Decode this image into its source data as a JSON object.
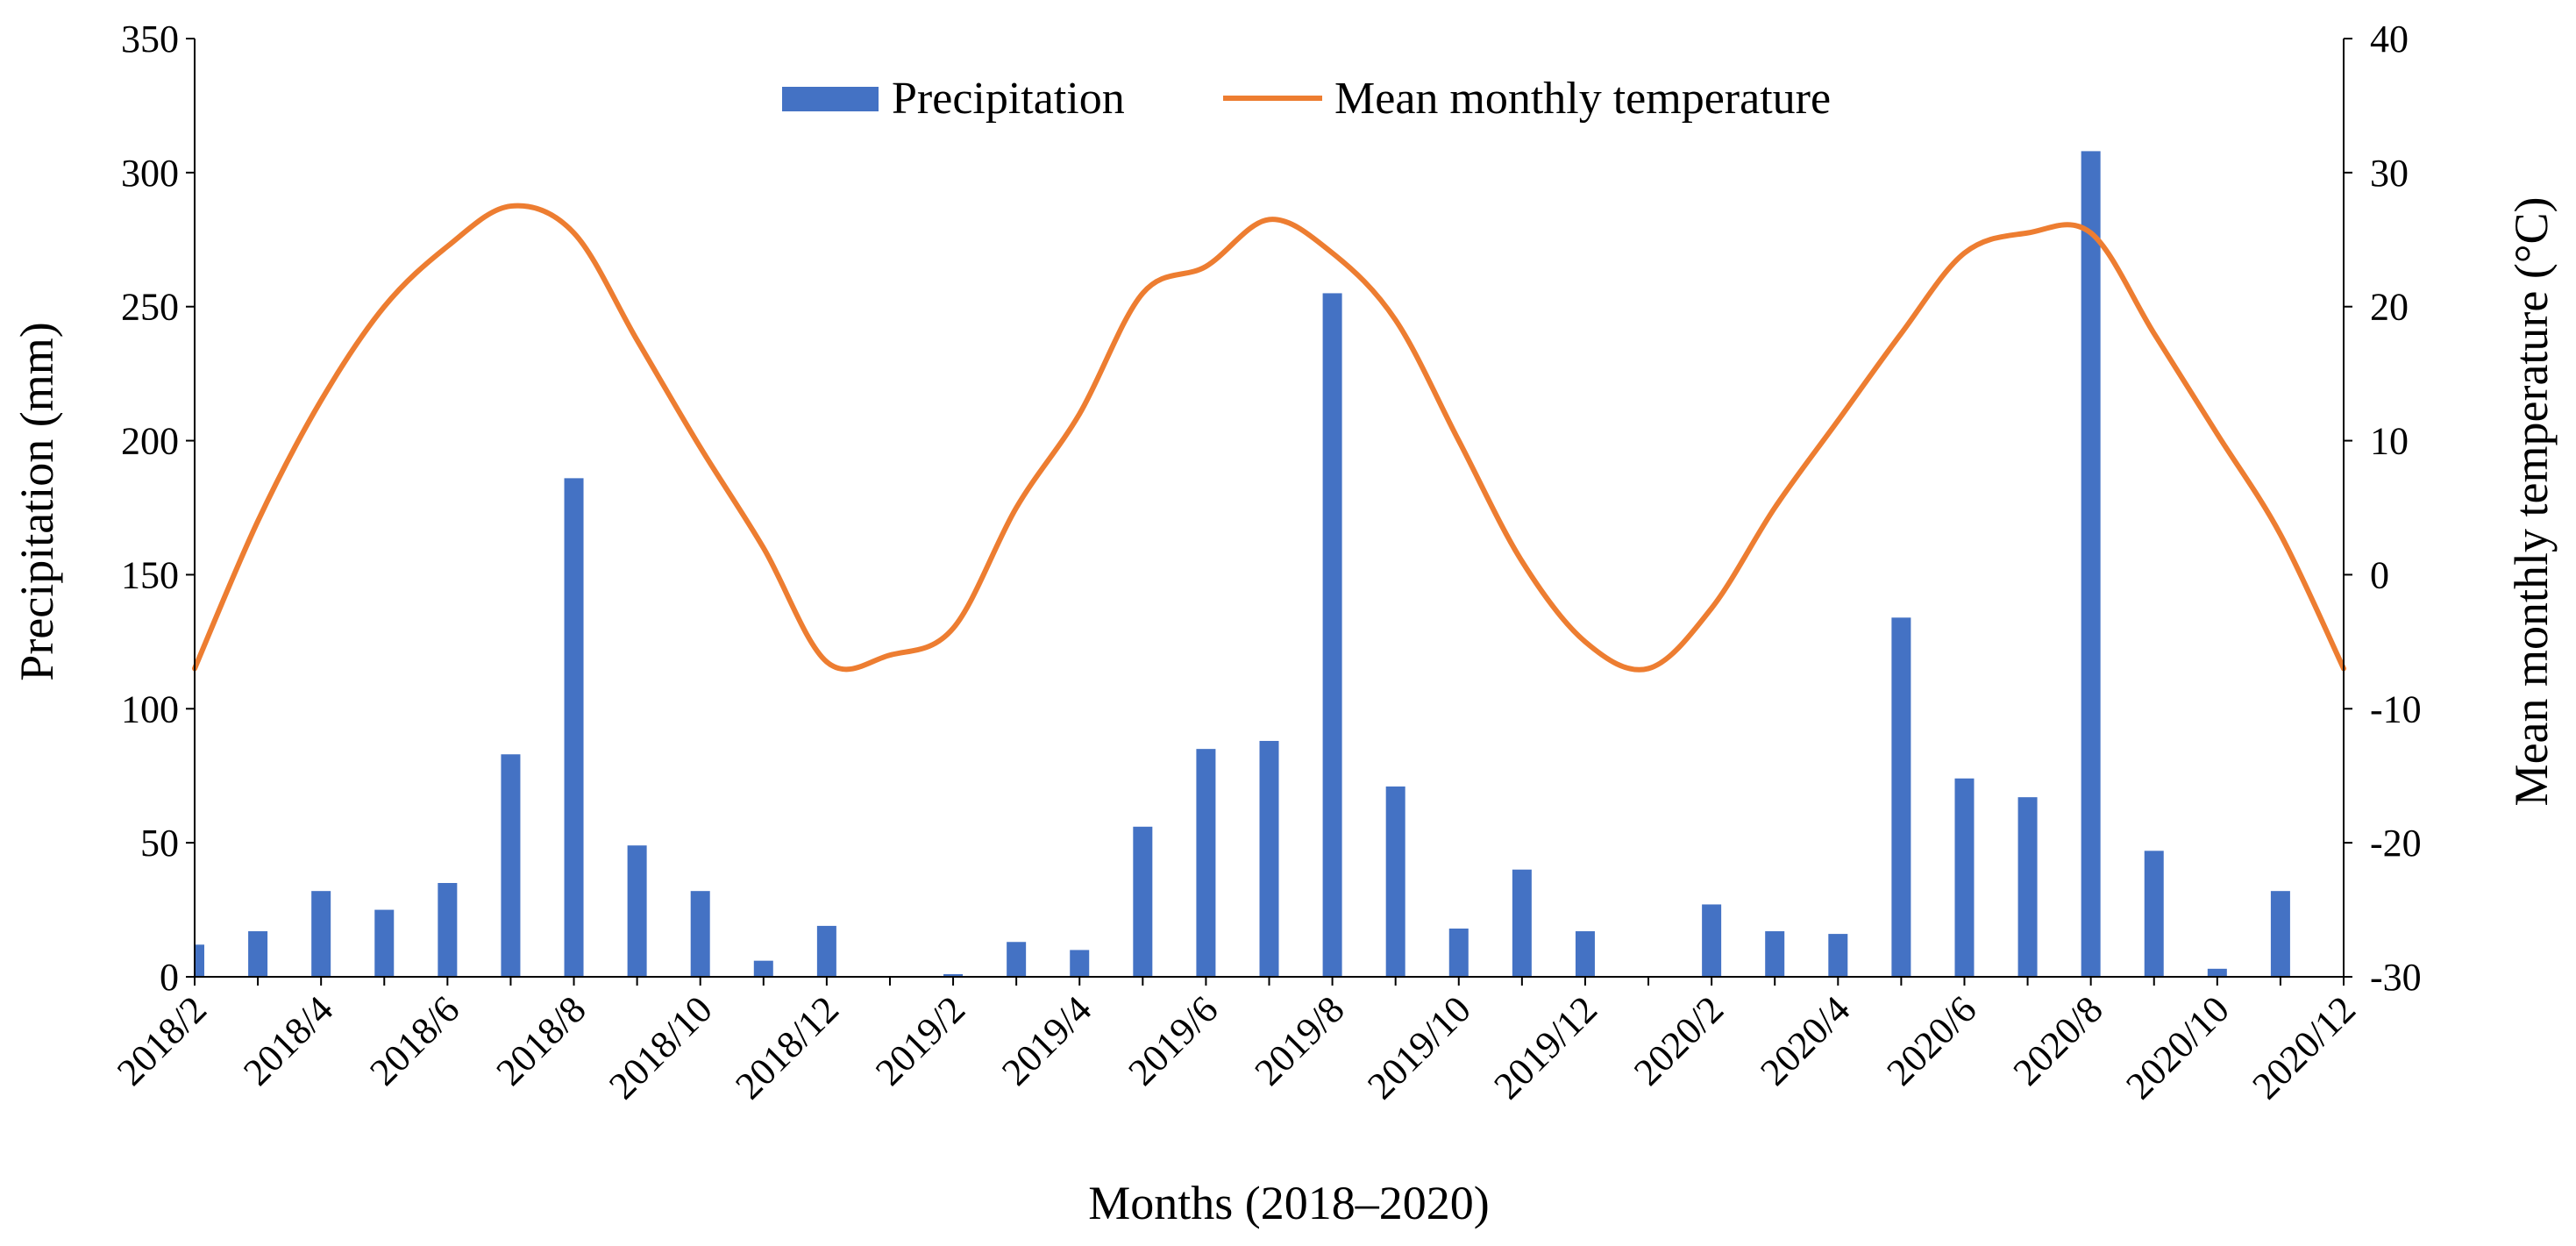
{
  "chart_data": {
    "type": "bar+line",
    "title": "",
    "xlabel": "Months (2018–2020)",
    "ylabel_left": "Precipitation (mm)",
    "ylabel_right": "Mean monthly temperature (°C)",
    "ylim_left": [
      0,
      350
    ],
    "yticks_left": [
      0,
      50,
      100,
      150,
      200,
      250,
      300,
      350
    ],
    "ylim_right": [
      -30,
      40
    ],
    "yticks_right": [
      -30,
      -20,
      -10,
      0,
      10,
      20,
      30,
      40
    ],
    "xtick_labels": [
      "2018/2",
      "2018/4",
      "2018/6",
      "2018/8",
      "2018/10",
      "2018/12",
      "2019/2",
      "2019/4",
      "2019/6",
      "2019/8",
      "2019/10",
      "2019/12",
      "2020/2",
      "2020/4",
      "2020/6",
      "2020/8",
      "2020/10",
      "2020/12"
    ],
    "legend_placement": "top-center",
    "grid": false,
    "colors": {
      "precipitation": "#4472C4",
      "temperature": "#ED7D31"
    },
    "categories": [
      "2018/2",
      "2018/3",
      "2018/4",
      "2018/5",
      "2018/6",
      "2018/7",
      "2018/8",
      "2018/9",
      "2018/10",
      "2018/11",
      "2018/12",
      "2019/1",
      "2019/2",
      "2019/3",
      "2019/4",
      "2019/5",
      "2019/6",
      "2019/7",
      "2019/8",
      "2019/9",
      "2019/10",
      "2019/11",
      "2019/12",
      "2020/1",
      "2020/2",
      "2020/3",
      "2020/4",
      "2020/5",
      "2020/6",
      "2020/7",
      "2020/8",
      "2020/9",
      "2020/10",
      "2020/11",
      "2020/12"
    ],
    "series": [
      {
        "name": "Precipitation",
        "kind": "bar",
        "axis": "left",
        "values": [
          12,
          17,
          32,
          25,
          35,
          83,
          186,
          49,
          32,
          6,
          19,
          0,
          1,
          13,
          10,
          56,
          85,
          88,
          255,
          71,
          18,
          40,
          17,
          0,
          27,
          17,
          16,
          134,
          74,
          67,
          308,
          47,
          3,
          32,
          0
        ]
      },
      {
        "name": "Mean monthly temperature",
        "kind": "line",
        "axis": "right",
        "values": [
          -7,
          4,
          13,
          20,
          24.5,
          27.5,
          25.5,
          17.5,
          9.5,
          2,
          -6.5,
          -6,
          -4,
          5,
          12,
          21,
          23,
          26.5,
          24,
          19,
          10,
          1,
          -5,
          -7,
          -2.5,
          5,
          11.5,
          18,
          24,
          25.5,
          25.5,
          18,
          10.5,
          3,
          -7
        ]
      }
    ]
  }
}
